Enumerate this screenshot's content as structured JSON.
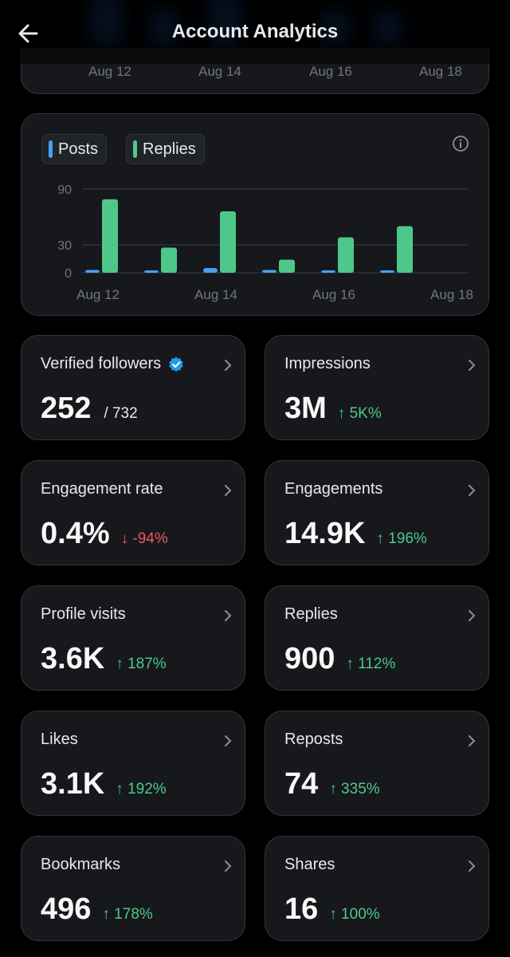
{
  "header": {
    "title": "Account Analytics",
    "back_icon": "back-arrow-icon"
  },
  "previous_chart_axis": [
    "Aug 12",
    "Aug 14",
    "Aug 16",
    "Aug 18"
  ],
  "colors": {
    "posts": "#4a9ff5",
    "replies": "#4ec88a",
    "up": "#4ec88a",
    "down": "#f4565c",
    "card": "#16181c",
    "verified": "#1d9bf0"
  },
  "chart": {
    "legend": [
      {
        "label": "Posts",
        "color": "#4a9ff5"
      },
      {
        "label": "Replies",
        "color": "#4ec88a"
      }
    ],
    "info_icon": "info-icon"
  },
  "chart_data": {
    "type": "bar",
    "title": "",
    "categories": [
      "Aug 12",
      "Aug 13",
      "Aug 14",
      "Aug 15",
      "Aug 16",
      "Aug 17",
      "Aug 18"
    ],
    "series": [
      {
        "name": "Posts",
        "values": [
          3,
          2,
          5,
          3,
          1,
          1,
          0
        ]
      },
      {
        "name": "Replies",
        "values": [
          79,
          27,
          66,
          14,
          38,
          50,
          0
        ]
      }
    ],
    "xtick_labels": [
      "Aug 12",
      "Aug 14",
      "Aug 16",
      "Aug 18"
    ],
    "yticks": [
      0,
      30,
      90
    ],
    "ylim": [
      0,
      90
    ],
    "xlabel": "",
    "ylabel": "",
    "grid": true
  },
  "stats": {
    "verified": {
      "label": "Verified followers",
      "value": "252",
      "total": "/ 732"
    },
    "impressions": {
      "label": "Impressions",
      "value": "3M",
      "delta": "↑ 5K%"
    },
    "engagement_rate": {
      "label": "Engagement rate",
      "value": "0.4%",
      "delta": "↓ -94%"
    },
    "engagements": {
      "label": "Engagements",
      "value": "14.9K",
      "delta": "↑ 196%"
    },
    "profile_visits": {
      "label": "Profile visits",
      "value": "3.6K",
      "delta": "↑ 187%"
    },
    "replies": {
      "label": "Replies",
      "value": "900",
      "delta": "↑ 112%"
    },
    "likes": {
      "label": "Likes",
      "value": "3.1K",
      "delta": "↑ 192%"
    },
    "reposts": {
      "label": "Reposts",
      "value": "74",
      "delta": "↑ 335%"
    },
    "bookmarks": {
      "label": "Bookmarks",
      "value": "496",
      "delta": "↑ 178%"
    },
    "shares": {
      "label": "Shares",
      "value": "16",
      "delta": "↑ 100%"
    }
  }
}
